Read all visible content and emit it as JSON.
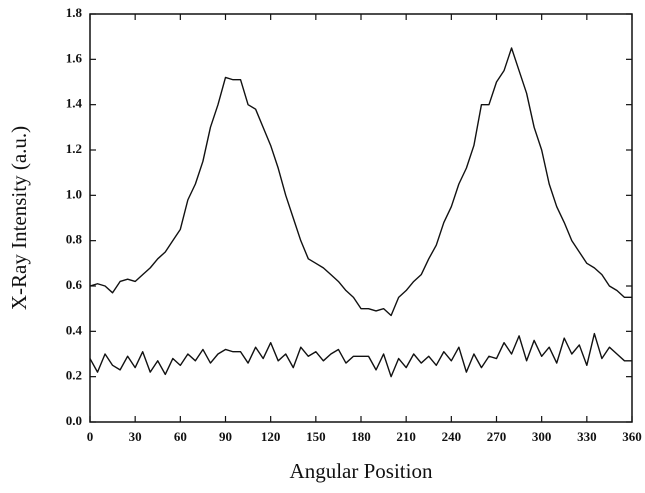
{
  "chart_data": {
    "type": "line",
    "x_label": "Angular Position",
    "y_label": "X-Ray Intensity (a.u.)",
    "x": [
      0,
      5,
      10,
      15,
      20,
      25,
      30,
      35,
      40,
      45,
      50,
      55,
      60,
      65,
      70,
      75,
      80,
      85,
      90,
      95,
      100,
      105,
      110,
      115,
      120,
      125,
      130,
      135,
      140,
      145,
      150,
      155,
      160,
      165,
      170,
      175,
      180,
      185,
      190,
      195,
      200,
      205,
      210,
      215,
      220,
      225,
      230,
      235,
      240,
      245,
      250,
      255,
      260,
      265,
      270,
      275,
      280,
      285,
      290,
      295,
      300,
      305,
      310,
      315,
      320,
      325,
      330,
      335,
      340,
      345,
      350,
      355,
      360
    ],
    "series": [
      {
        "color": "#111111",
        "values": [
          0.6,
          0.61,
          0.6,
          0.57,
          0.62,
          0.63,
          0.62,
          0.65,
          0.68,
          0.72,
          0.75,
          0.8,
          0.85,
          0.98,
          1.05,
          1.15,
          1.3,
          1.4,
          1.52,
          1.51,
          1.51,
          1.4,
          1.38,
          1.3,
          1.22,
          1.12,
          1.0,
          0.9,
          0.8,
          0.72,
          0.7,
          0.68,
          0.65,
          0.62,
          0.58,
          0.55,
          0.5,
          0.5,
          0.49,
          0.5,
          0.47,
          0.55,
          0.58,
          0.62,
          0.65,
          0.72,
          0.78,
          0.88,
          0.95,
          1.05,
          1.12,
          1.22,
          1.4,
          1.4,
          1.5,
          1.55,
          1.65,
          1.55,
          1.45,
          1.3,
          1.2,
          1.05,
          0.95,
          0.88,
          0.8,
          0.75,
          0.7,
          0.68,
          0.65,
          0.6,
          0.58,
          0.55,
          0.55
        ]
      },
      {
        "color": "#111111",
        "values": [
          0.28,
          0.22,
          0.3,
          0.25,
          0.23,
          0.29,
          0.24,
          0.31,
          0.22,
          0.27,
          0.21,
          0.28,
          0.25,
          0.3,
          0.27,
          0.32,
          0.26,
          0.3,
          0.32,
          0.31,
          0.31,
          0.26,
          0.33,
          0.28,
          0.35,
          0.27,
          0.3,
          0.24,
          0.33,
          0.29,
          0.31,
          0.27,
          0.3,
          0.32,
          0.26,
          0.29,
          0.29,
          0.29,
          0.23,
          0.3,
          0.2,
          0.28,
          0.24,
          0.3,
          0.26,
          0.29,
          0.25,
          0.31,
          0.27,
          0.33,
          0.22,
          0.3,
          0.24,
          0.29,
          0.28,
          0.35,
          0.3,
          0.38,
          0.27,
          0.36,
          0.29,
          0.33,
          0.26,
          0.37,
          0.3,
          0.34,
          0.25,
          0.39,
          0.28,
          0.33,
          0.3,
          0.27,
          0.27
        ]
      }
    ],
    "xlim": [
      0,
      360
    ],
    "xticks": [
      0,
      30,
      60,
      90,
      120,
      150,
      180,
      210,
      240,
      270,
      300,
      330,
      360
    ],
    "ylim": [
      0,
      1.8
    ],
    "yticks": [
      {
        "value": 0,
        "label": "0.0"
      },
      0.2,
      0.4,
      0.6,
      0.8,
      {
        "value": 1,
        "label": "1.0"
      },
      1.2,
      1.4,
      1.6,
      1.8
    ],
    "grid": false
  }
}
